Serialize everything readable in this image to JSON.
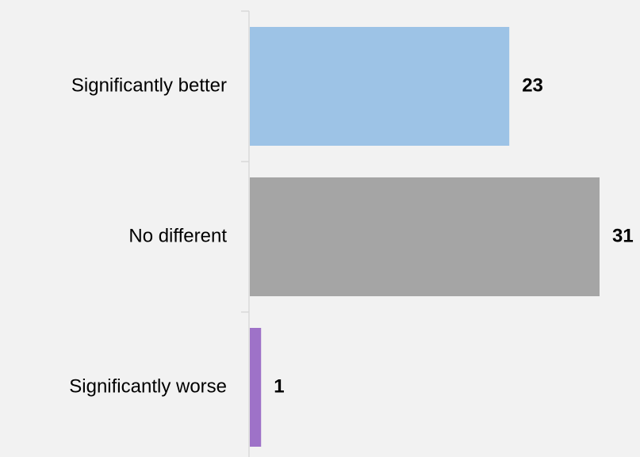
{
  "chart_data": {
    "type": "bar",
    "orientation": "horizontal",
    "categories": [
      "Significantly better",
      "No different",
      "Significantly worse"
    ],
    "values": [
      23,
      31,
      1
    ],
    "data_labels": [
      "23",
      "31",
      "1"
    ],
    "colors": [
      "#9dc3e6",
      "#a5a5a5",
      "#9e72c8"
    ],
    "title": "",
    "xlabel": "",
    "ylabel": "",
    "xlim": [
      0,
      31
    ],
    "grid": false,
    "legend": "none",
    "axis_color": "#d9d9d9",
    "background": "#f2f2f2"
  }
}
